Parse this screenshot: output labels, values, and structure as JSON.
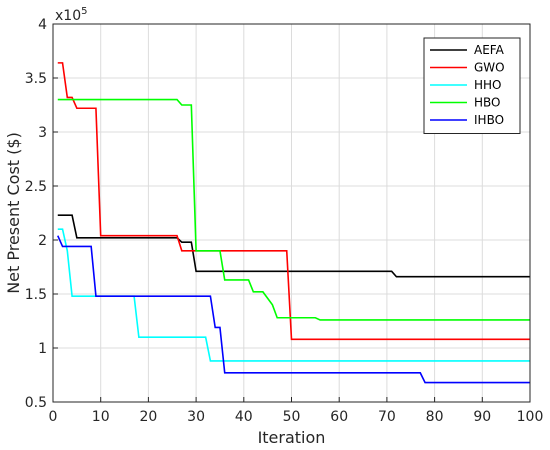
{
  "chart_data": {
    "type": "line",
    "title": "",
    "xlabel": "Iteration",
    "ylabel": "Net Present Cost ($)",
    "y_multiplier_label": "x10",
    "y_multiplier_exponent": "5",
    "xlim": [
      0,
      100
    ],
    "ylim": [
      0.5,
      4
    ],
    "x_ticks": [
      0,
      10,
      20,
      30,
      40,
      50,
      60,
      70,
      80,
      90,
      100
    ],
    "y_ticks": [
      0.5,
      1,
      1.5,
      2,
      2.5,
      3,
      3.5,
      4
    ],
    "x_tick_labels": [
      "0",
      "10",
      "20",
      "30",
      "40",
      "50",
      "60",
      "70",
      "80",
      "90",
      "100"
    ],
    "y_tick_labels": [
      "0.5",
      "1",
      "1.5",
      "2",
      "2.5",
      "3",
      "3.5",
      "4"
    ],
    "grid": true,
    "legend_position": "top-right",
    "series": [
      {
        "name": "AEFA",
        "color": "#000000",
        "points": [
          [
            1,
            2.23
          ],
          [
            4,
            2.23
          ],
          [
            5,
            2.02
          ],
          [
            26,
            2.02
          ],
          [
            27,
            1.98
          ],
          [
            29,
            1.98
          ],
          [
            30,
            1.71
          ],
          [
            71,
            1.71
          ],
          [
            72,
            1.66
          ],
          [
            100,
            1.66
          ]
        ]
      },
      {
        "name": "GWO",
        "color": "#ff0000",
        "points": [
          [
            1,
            3.64
          ],
          [
            2,
            3.64
          ],
          [
            3,
            3.32
          ],
          [
            4,
            3.32
          ],
          [
            5,
            3.22
          ],
          [
            9,
            3.22
          ],
          [
            10,
            2.04
          ],
          [
            26,
            2.04
          ],
          [
            27,
            1.9
          ],
          [
            49,
            1.9
          ],
          [
            50,
            1.08
          ],
          [
            100,
            1.08
          ]
        ]
      },
      {
        "name": "HHO",
        "color": "#00ffff",
        "points": [
          [
            1,
            2.1
          ],
          [
            2,
            2.1
          ],
          [
            3,
            1.9
          ],
          [
            4,
            1.48
          ],
          [
            17,
            1.48
          ],
          [
            18,
            1.1
          ],
          [
            32,
            1.1
          ],
          [
            33,
            0.88
          ],
          [
            100,
            0.88
          ]
        ]
      },
      {
        "name": "HBO",
        "color": "#00ff00",
        "points": [
          [
            1,
            3.3
          ],
          [
            26,
            3.3
          ],
          [
            27,
            3.25
          ],
          [
            29,
            3.25
          ],
          [
            30,
            1.9
          ],
          [
            35,
            1.9
          ],
          [
            36,
            1.63
          ],
          [
            41,
            1.63
          ],
          [
            42,
            1.52
          ],
          [
            44,
            1.52
          ],
          [
            46,
            1.4
          ],
          [
            47,
            1.28
          ],
          [
            55,
            1.28
          ],
          [
            56,
            1.26
          ],
          [
            100,
            1.26
          ]
        ]
      },
      {
        "name": "IHBO",
        "color": "#0000ff",
        "points": [
          [
            1,
            2.04
          ],
          [
            2,
            1.94
          ],
          [
            8,
            1.94
          ],
          [
            9,
            1.48
          ],
          [
            33,
            1.48
          ],
          [
            34,
            1.19
          ],
          [
            35,
            1.19
          ],
          [
            36,
            0.77
          ],
          [
            77,
            0.77
          ],
          [
            78,
            0.68
          ],
          [
            100,
            0.68
          ]
        ]
      }
    ]
  }
}
